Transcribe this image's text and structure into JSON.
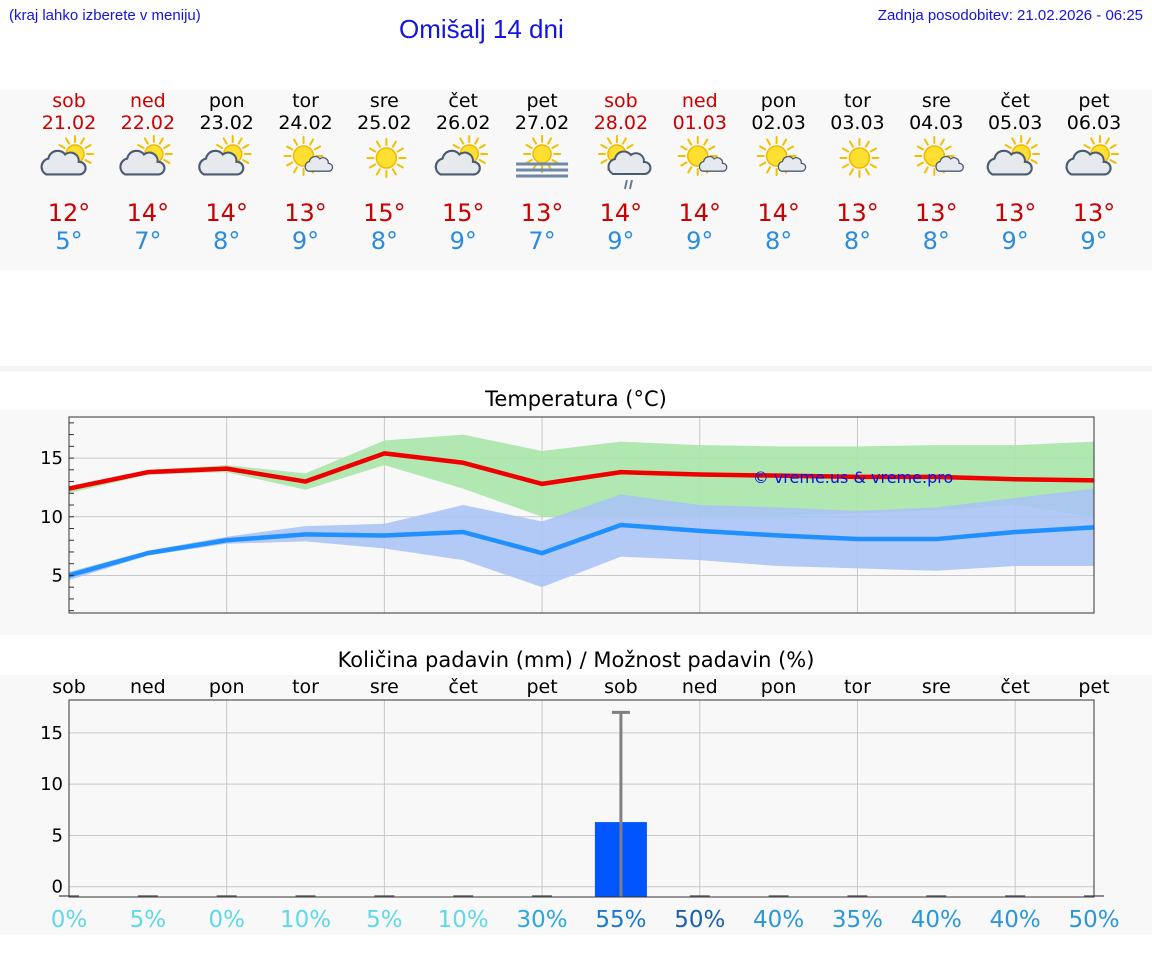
{
  "header": {
    "hint": "(kraj lahko izberete v meniju)",
    "title": "Omišalj 14 dni",
    "updated": "Zadnja posodobitev: 21.02.2026 - 06:25"
  },
  "days": [
    {
      "name": "sob",
      "date": "21.02",
      "weekend": true,
      "icon": "sun-cloud-icon",
      "max": "12°",
      "min": "5°"
    },
    {
      "name": "ned",
      "date": "22.02",
      "weekend": true,
      "icon": "sun-cloud-icon",
      "max": "14°",
      "min": "7°"
    },
    {
      "name": "pon",
      "date": "23.02",
      "weekend": false,
      "icon": "sun-cloud-icon",
      "max": "14°",
      "min": "8°"
    },
    {
      "name": "tor",
      "date": "24.02",
      "weekend": false,
      "icon": "sun-small-cloud-icon",
      "max": "13°",
      "min": "9°"
    },
    {
      "name": "sre",
      "date": "25.02",
      "weekend": false,
      "icon": "sun-icon",
      "max": "15°",
      "min": "8°"
    },
    {
      "name": "čet",
      "date": "26.02",
      "weekend": false,
      "icon": "sun-cloud-icon",
      "max": "15°",
      "min": "9°"
    },
    {
      "name": "pet",
      "date": "27.02",
      "weekend": false,
      "icon": "sun-fog-icon",
      "max": "13°",
      "min": "7°"
    },
    {
      "name": "sob",
      "date": "28.02",
      "weekend": true,
      "icon": "sun-rain-icon",
      "max": "14°",
      "min": "9°"
    },
    {
      "name": "ned",
      "date": "01.03",
      "weekend": true,
      "icon": "sun-small-cloud-icon",
      "max": "14°",
      "min": "9°"
    },
    {
      "name": "pon",
      "date": "02.03",
      "weekend": false,
      "icon": "sun-small-cloud-icon",
      "max": "14°",
      "min": "8°"
    },
    {
      "name": "tor",
      "date": "03.03",
      "weekend": false,
      "icon": "sun-icon",
      "max": "13°",
      "min": "8°"
    },
    {
      "name": "sre",
      "date": "04.03",
      "weekend": false,
      "icon": "sun-small-cloud-icon",
      "max": "13°",
      "min": "8°"
    },
    {
      "name": "čet",
      "date": "05.03",
      "weekend": false,
      "icon": "sun-cloud-icon",
      "max": "13°",
      "min": "9°"
    },
    {
      "name": "pet",
      "date": "06.03",
      "weekend": false,
      "icon": "sun-cloud-icon",
      "max": "13°",
      "min": "9°"
    }
  ],
  "colors": {
    "weekend": "#cc0000",
    "weekday": "#000000",
    "max": "#cc0000",
    "min": "#2a8ce0"
  },
  "chart_data": [
    {
      "type": "line",
      "title": "Temperatura (°C)",
      "xlabel": "",
      "ylabel": "",
      "ylim": [
        1.8,
        18.5
      ],
      "yticks": [
        5,
        10,
        15
      ],
      "watermark": "© vreme.us & vreme.pro",
      "x": [
        0,
        1,
        2,
        3,
        4,
        5,
        6,
        7,
        8,
        9,
        10,
        11,
        12,
        13
      ],
      "series": [
        {
          "name": "max",
          "color": "#ee0000",
          "values": [
            12.4,
            13.8,
            14.1,
            13.0,
            15.4,
            14.6,
            12.8,
            13.8,
            13.6,
            13.5,
            13.4,
            13.4,
            13.2,
            13.1
          ]
        },
        {
          "name": "min",
          "color": "#2090ff",
          "values": [
            5.0,
            6.9,
            8.0,
            8.5,
            8.4,
            8.7,
            6.9,
            9.3,
            8.8,
            8.4,
            8.1,
            8.1,
            8.7,
            9.1
          ]
        }
      ],
      "bands": [
        {
          "name": "max-range",
          "color": "#a8e4a8",
          "upper": [
            12.6,
            14.0,
            14.4,
            13.7,
            16.5,
            17.0,
            15.6,
            16.4,
            16.1,
            16.0,
            16.0,
            16.1,
            16.1,
            16.4
          ],
          "lower": [
            12.0,
            13.6,
            13.8,
            12.3,
            14.4,
            12.4,
            10.0,
            10.0,
            10.1,
            10.1,
            10.3,
            10.5,
            11.0,
            10.0
          ]
        },
        {
          "name": "min-range",
          "color": "#aac4f4",
          "upper": [
            5.3,
            7.1,
            8.3,
            9.2,
            9.4,
            11.0,
            9.6,
            11.9,
            11.0,
            10.8,
            10.5,
            10.8,
            11.6,
            12.4
          ],
          "lower": [
            4.6,
            6.7,
            7.7,
            7.9,
            7.3,
            6.3,
            4.0,
            6.6,
            6.3,
            5.8,
            5.6,
            5.4,
            5.8,
            5.8
          ]
        }
      ]
    },
    {
      "type": "bar",
      "title": "Količina padavin (mm) / Možnost padavin (%)",
      "xlabel": "",
      "ylabel": "",
      "ylim": [
        -1.0,
        18.2
      ],
      "yticks": [
        0,
        5,
        10,
        15
      ],
      "categories": [
        "sob",
        "ned",
        "pon",
        "tor",
        "sre",
        "čet",
        "pet",
        "sob",
        "ned",
        "pon",
        "tor",
        "sre",
        "čet",
        "pet"
      ],
      "values": [
        0,
        0,
        0,
        0,
        0,
        0,
        0,
        6.3,
        0,
        0,
        0,
        0,
        0,
        0
      ],
      "error_max": [
        0,
        0,
        0,
        0,
        0,
        0,
        0,
        17.0,
        0,
        0,
        0,
        0,
        0,
        0
      ],
      "probabilities": [
        "0%",
        "5%",
        "0%",
        "10%",
        "5%",
        "10%",
        "30%",
        "55%",
        "50%",
        "40%",
        "35%",
        "40%",
        "40%",
        "50%"
      ],
      "prob_colors": [
        "#5fd8e8",
        "#5fd8e8",
        "#5fd8e8",
        "#5fd8e8",
        "#5fd8e8",
        "#5fd8e8",
        "#2aa8e0",
        "#1a78d0",
        "#1a60b0",
        "#2a98d8",
        "#2a98d8",
        "#2a98d8",
        "#2a98d8",
        "#2a98d8"
      ],
      "bar_color": "#0055ff"
    }
  ]
}
